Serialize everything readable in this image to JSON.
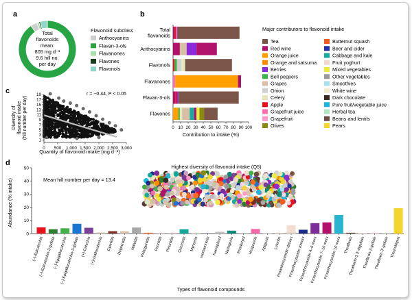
{
  "panel_labels": [
    "a",
    "b",
    "c",
    "d"
  ],
  "colors": {
    "Tea": "#7b5548",
    "Red wine": "#b0126b",
    "Orange juice": "#ffa000",
    "Orange and satsuma": "#f98c00",
    "Berries": "#8a2ad8",
    "Bell peppers": "#3cb54a",
    "Grapes": "#d8c0a6",
    "Onion": "#d0d0d0",
    "Celery": "#e6e6b8",
    "Apple": "#e8111e",
    "Grapefruit juice": "#ff6fb0",
    "Grapefruit": "#ff99c8",
    "Olives": "#8a8a10",
    "Butternut squash": "#f25c1a",
    "Beer and cider": "#2233aa",
    "Cabbage and kale": "#1aa99f",
    "Fruit yoghurt": "#f0d8cc",
    "Mixed vegetables": "#eaea40",
    "Other vegetables": "#9a9a9a",
    "Smoothies": "#a9e0ee",
    "White wine": "#f4eccd",
    "Dark chocolate": "#3a2a22",
    "Pure fruit/vegetable juice": "#19b7dd",
    "Herbal tea": "#b0e6c0",
    "Beans and lentils": "#6a4e44",
    "Pears": "#f3d52c"
  },
  "panel_a": {
    "legend_title": "Flavonoid subclass",
    "center_lines": [
      "Total",
      "flavonoids",
      "mean:",
      "805 mg d⁻¹",
      "9.6 hill no.",
      "per day"
    ],
    "chart_data": {
      "type": "pie",
      "categories": [
        "Flavan-3-ols",
        "Anthocyanins",
        "Flavanones",
        "Flavones",
        "Flavonols"
      ],
      "values": [
        90.3,
        3.7,
        1.2,
        0.8,
        4.0
      ],
      "colors": [
        "#27a545",
        "#cfcfcf",
        "#a8e0ad",
        "#153d1d",
        "#8fd5c8"
      ]
    },
    "legend": [
      {
        "label": "Anthocyanins",
        "color": "#cfcfcf"
      },
      {
        "label": "Flavan-3-ols",
        "color": "#27a545"
      },
      {
        "label": "Flavanones",
        "color": "#a8e0ad"
      },
      {
        "label": "Flavones",
        "color": "#153d1d"
      },
      {
        "label": "Flavonols",
        "color": "#8fd5c8"
      }
    ]
  },
  "panel_b": {
    "legend_title": "Major contributors to flavonoid intake",
    "xlabel": "Contribution to intake (%)",
    "legend_col1": [
      "Tea",
      "Red wine",
      "Orange juice",
      "Orange and satsuma",
      "Berries",
      "Bell peppers",
      "Grapes",
      "Onion",
      "Celery",
      "Apple",
      "Grapefruit juice",
      "Grapefruit",
      "Olives"
    ],
    "legend_col2": [
      "Butternut squash",
      "Beer and cider",
      "Cabbage and kale",
      "Fruit yoghurt",
      "Mixed vegetables",
      "Other vegetables",
      "Smoothies",
      "White wine",
      "Dark chocolate",
      "Pure fruit/vegetable juice",
      "Herbal tea",
      "Beans and lentils",
      "Pears"
    ],
    "chart_data": {
      "type": "bar",
      "orientation": "horizontal",
      "stacked": true,
      "xlim": [
        0,
        100
      ],
      "xticks": [
        0,
        10,
        20,
        30,
        40,
        50,
        60,
        70,
        80,
        90,
        100
      ],
      "categories": [
        "Total\nflavonoids",
        "Anthocyanins",
        "Flavonols",
        "Flavanones",
        "Flavan-3-ols",
        "Flavones"
      ],
      "bars": [
        [
          [
            "Red wine",
            2
          ],
          [
            "Apple",
            2
          ],
          [
            "Grapefruit",
            1
          ],
          [
            "Berries",
            1
          ],
          [
            "Tea",
            82
          ]
        ],
        [
          [
            "Red wine",
            9
          ],
          [
            "Grapes",
            9
          ],
          [
            "Berries",
            13
          ],
          [
            "Red wine",
            27
          ]
        ],
        [
          [
            "Apple",
            2
          ],
          [
            "Bell peppers",
            3
          ],
          [
            "Onion",
            6
          ],
          [
            "Celery",
            5
          ],
          [
            "Tea",
            62
          ]
        ],
        [
          [
            "Grapefruit juice",
            3
          ],
          [
            "Orange juice",
            83
          ],
          [
            "Red wine",
            4
          ]
        ],
        [
          [
            "Red wine",
            3
          ],
          [
            "Apple",
            2
          ],
          [
            "Berries",
            2
          ],
          [
            "Tea",
            80
          ]
        ],
        [
          [
            "Orange juice",
            7
          ],
          [
            "Bell peppers",
            2
          ],
          [
            "Celery",
            3
          ],
          [
            "Grapes",
            10
          ],
          [
            "Cabbage and kale",
            6
          ],
          [
            "Red wine",
            3
          ],
          [
            "Mixed vegetables",
            4
          ],
          [
            "Olives",
            6
          ],
          [
            "Tea",
            18
          ]
        ]
      ]
    }
  },
  "panel_c": {
    "annotation": "r = −0.44, P < 0.05",
    "chart_data": {
      "type": "scatter",
      "xlabel": "Quantity of flavonoid intake (mg d⁻¹)",
      "ylabel_lines": [
        "Diversity of",
        "flavonoid intake",
        "(hill number per day)"
      ],
      "xlim": [
        0,
        3000
      ],
      "ylim": [
        0,
        19
      ],
      "xticks": [
        0,
        500,
        1000,
        1500,
        2000,
        2500,
        3000
      ],
      "xtick_labels": [
        "0",
        "500",
        "1,000",
        "1,500",
        "2,000",
        "2,500",
        "3,000"
      ],
      "yticks": [
        1,
        3,
        5,
        7,
        9,
        11,
        13,
        15,
        17,
        19
      ],
      "trend_line": {
        "x": [
          0,
          2650
        ],
        "y": [
          10.8,
          2.2
        ]
      },
      "points_visible": [
        [
          230,
          19.3
        ],
        [
          540,
          17.6
        ],
        [
          720,
          16.4
        ],
        [
          960,
          15.6
        ],
        [
          1190,
          14.6
        ],
        [
          1430,
          13.4
        ],
        [
          1660,
          12.1
        ],
        [
          1900,
          10.6
        ],
        [
          2140,
          9.2
        ],
        [
          2380,
          7.8
        ],
        [
          2600,
          6.6
        ],
        [
          2820,
          5.0
        ],
        [
          100,
          2.0
        ],
        [
          1200,
          1.6
        ],
        [
          2000,
          2.0
        ]
      ]
    }
  },
  "panel_d": {
    "mean_text": "Mean hill number per day = 13.4",
    "inset_title": "Highest diversity of flavonoid intake (Q5)",
    "chart_data": {
      "type": "bar",
      "xlabel": "Types of flavonoid compounds",
      "ylabel": "Abundance (% intake)",
      "ylim": [
        0,
        50
      ],
      "yticks": [
        0,
        10,
        20,
        30,
        40,
        50
      ],
      "categories": [
        "(–)-Epicatechin",
        "(–)-Epicatechin-3-gallate",
        "(–)-Epigallocatechin",
        "(–)-Epigallocatechin-3-gallate",
        "(+)-Catechin",
        "(+)-Gallocatechin",
        "Cyanidin",
        "Delphinidin",
        "Malvidin",
        "Pelargonidin",
        "Peonidin",
        "Petunidin",
        "Quercetin",
        "Myricetin",
        "Isorhamnetin",
        "Kaempferol",
        "Naringenin",
        "Eriodictyol",
        "Hesperetin",
        "Apigenin",
        "Luteolin",
        "Proanthocyanidin dimers",
        "Proanthocyanidin trimers",
        "Proanthocyanidin 4–6 mers",
        "Proanthocyanidin 7–10 mers",
        "Proanthocyanidin 10 mers",
        "Theaflavin",
        "Theaflavin-3,3′-digallate",
        "Theaflavin-3-gallate",
        "Theaflavin-3′-gallate",
        "Thearubigins"
      ],
      "values": [
        4.7,
        3.3,
        4.0,
        7.4,
        4.4,
        0.8,
        1.8,
        1.8,
        4.6,
        0.6,
        0.3,
        0.3,
        3.3,
        0.2,
        0.1,
        1.3,
        2.2,
        0.1,
        3.5,
        0.2,
        0.4,
        6.4,
        2.9,
        7.9,
        8.5,
        14.1,
        0.6,
        0.3,
        0.5,
        0.4,
        19.3
      ],
      "colors": [
        "#e8111e",
        "#2e7d32",
        "#43b047",
        "#1976d2",
        "#7b3f98",
        "#cfc2a4",
        "#7a2f22",
        "#d9c3b0",
        "#a8a8a8",
        "#f36c21",
        "#cfa0c0",
        "#d88bb6",
        "#14a89a",
        "#e6c8b6",
        "#2c3a8a",
        "#bcbcbc",
        "#0b8a7a",
        "#dfe6c8",
        "#f46aa8",
        "#f0dfd0",
        "#d9c4b8",
        "#f3dcd0",
        "#1c2c86",
        "#7c2d97",
        "#b3126a",
        "#29b4cf",
        "#5a3e35",
        "#e0d0c8",
        "#f1d6e8",
        "#cbcbcb",
        "#f3d52c"
      ]
    }
  }
}
